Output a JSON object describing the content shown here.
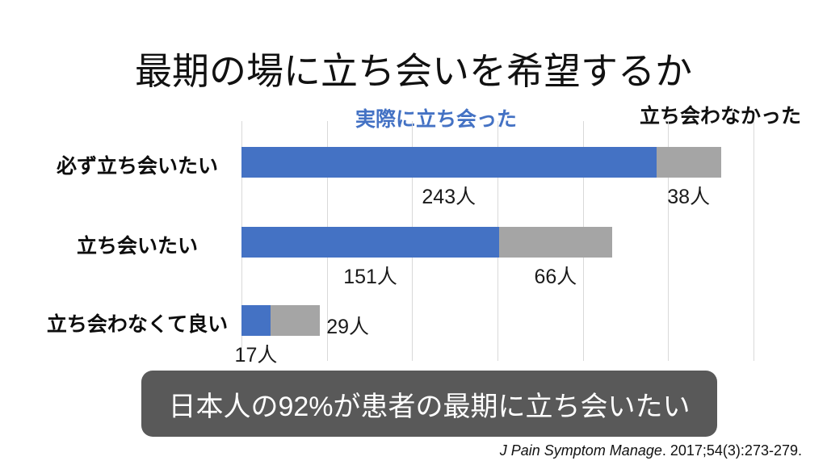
{
  "slide": {
    "title": "最期の場に立ち会いを希望するか",
    "summary": "日本人の92%が患者の最期に立ち会いたい",
    "citation": {
      "journal": "J Pain Symptom Manage",
      "rest": ". 2017;54(3):273-279."
    }
  },
  "chart_data": {
    "type": "bar",
    "orientation": "horizontal",
    "stacked": true,
    "title": "最期の場に立ち会いを希望するか",
    "categories": [
      "必ず立ち会いたい",
      "立ち会いたい",
      "立ち会わなくて良い"
    ],
    "series": [
      {
        "name": "実際に立ち会った",
        "color": "#4472C4",
        "label_text_color": "#4472C4",
        "values": [
          243,
          151,
          17
        ]
      },
      {
        "name": "立ち会わなかった",
        "color": "#A5A5A5",
        "label_text_color": "#111111",
        "values": [
          38,
          66,
          29
        ]
      }
    ],
    "unit": "人",
    "value_label_placement": [
      [
        "below",
        "below"
      ],
      [
        "below",
        "below"
      ],
      [
        "below",
        "right"
      ]
    ],
    "xlim": [
      0,
      300
    ],
    "gridline_step": 50,
    "gridline_color": "#D9D9D9",
    "grid": true,
    "legend_position": "manual-labels-above-plot",
    "xlabel": "",
    "ylabel": ""
  }
}
